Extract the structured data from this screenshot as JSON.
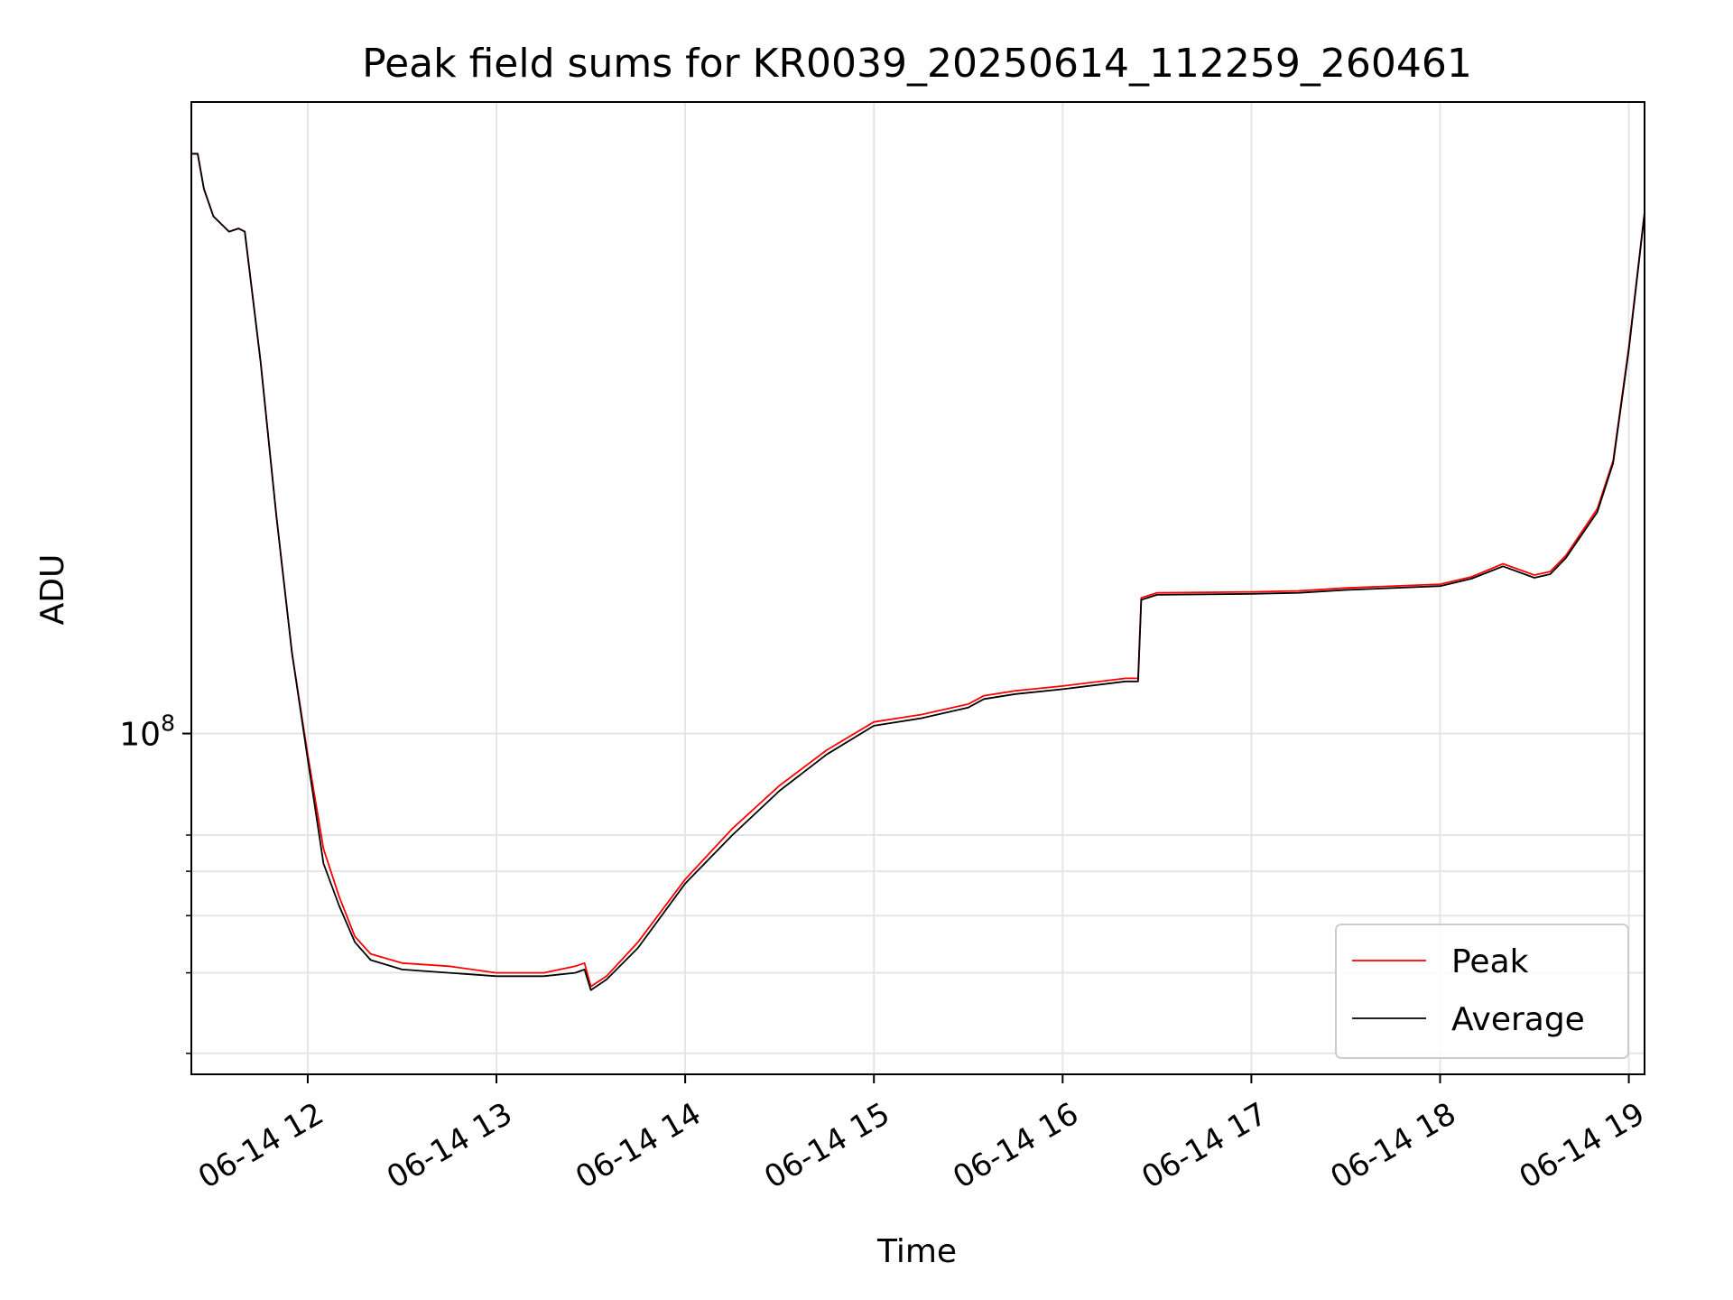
{
  "chart_data": {
    "type": "line",
    "title": "Peak field sums for KR0039_20250614_112259_260461",
    "xlabel": "Time",
    "ylabel": "ADU",
    "x_type": "datetime",
    "xlim": [
      "2025-06-14 11:23",
      "2025-06-14 19:05"
    ],
    "ylim": [
      18000000,
      2400000000
    ],
    "y_scale": "log",
    "y_major_ticks": [
      {
        "value": 100000000,
        "label": "10^8"
      }
    ],
    "y_minor_ticks": [
      20000000,
      30000000,
      40000000,
      50000000,
      60000000
    ],
    "x_ticks": [
      {
        "value": "2025-06-14 12:00",
        "label": "06-14 12"
      },
      {
        "value": "2025-06-14 13:00",
        "label": "06-14 13"
      },
      {
        "value": "2025-06-14 14:00",
        "label": "06-14 14"
      },
      {
        "value": "2025-06-14 15:00",
        "label": "06-14 15"
      },
      {
        "value": "2025-06-14 16:00",
        "label": "06-14 16"
      },
      {
        "value": "2025-06-14 17:00",
        "label": "06-14 17"
      },
      {
        "value": "2025-06-14 18:00",
        "label": "06-14 18"
      },
      {
        "value": "2025-06-14 19:00",
        "label": "06-14 19"
      }
    ],
    "grid": true,
    "legend_position": "lower-right",
    "series": [
      {
        "name": "Peak",
        "color": "#ff0000",
        "x": [
          "2025-06-14 11:23",
          "2025-06-14 11:25",
          "2025-06-14 11:27",
          "2025-06-14 11:30",
          "2025-06-14 11:35",
          "2025-06-14 11:38",
          "2025-06-14 11:40",
          "2025-06-14 11:45",
          "2025-06-14 11:50",
          "2025-06-14 11:55",
          "2025-06-14 12:00",
          "2025-06-14 12:05",
          "2025-06-14 12:10",
          "2025-06-14 12:15",
          "2025-06-14 12:20",
          "2025-06-14 12:30",
          "2025-06-14 12:45",
          "2025-06-14 13:00",
          "2025-06-14 13:15",
          "2025-06-14 13:25",
          "2025-06-14 13:28",
          "2025-06-14 13:30",
          "2025-06-14 13:35",
          "2025-06-14 13:45",
          "2025-06-14 14:00",
          "2025-06-14 14:15",
          "2025-06-14 14:30",
          "2025-06-14 14:45",
          "2025-06-14 15:00",
          "2025-06-14 15:15",
          "2025-06-14 15:30",
          "2025-06-14 15:35",
          "2025-06-14 15:45",
          "2025-06-14 16:00",
          "2025-06-14 16:20",
          "2025-06-14 16:24",
          "2025-06-14 16:25",
          "2025-06-14 16:30",
          "2025-06-14 17:00",
          "2025-06-14 17:15",
          "2025-06-14 17:30",
          "2025-06-14 18:00",
          "2025-06-14 18:10",
          "2025-06-14 18:20",
          "2025-06-14 18:30",
          "2025-06-14 18:35",
          "2025-06-14 18:40",
          "2025-06-14 18:50",
          "2025-06-14 18:55",
          "2025-06-14 19:00",
          "2025-06-14 19:05"
        ],
        "values": [
          1850000000,
          1850000000,
          1550000000,
          1350000000,
          1250000000,
          1270000000,
          1250000000,
          650000000,
          300000000,
          150000000,
          90000000,
          56000000,
          44000000,
          36000000,
          33000000,
          31500000,
          31000000,
          30000000,
          30000000,
          31000000,
          31500000,
          28000000,
          29500000,
          35000000,
          48000000,
          62000000,
          77000000,
          92000000,
          106000000,
          110000000,
          116000000,
          121000000,
          124000000,
          127000000,
          132000000,
          132000000,
          198000000,
          203000000,
          204000000,
          205000000,
          208000000,
          212000000,
          220000000,
          235000000,
          222000000,
          226000000,
          245000000,
          310000000,
          395000000,
          700000000,
          1380000000
        ]
      },
      {
        "name": "Average",
        "color": "#000000",
        "x": [
          "2025-06-14 11:23",
          "2025-06-14 11:25",
          "2025-06-14 11:27",
          "2025-06-14 11:30",
          "2025-06-14 11:35",
          "2025-06-14 11:38",
          "2025-06-14 11:40",
          "2025-06-14 11:45",
          "2025-06-14 11:50",
          "2025-06-14 11:55",
          "2025-06-14 12:00",
          "2025-06-14 12:05",
          "2025-06-14 12:10",
          "2025-06-14 12:15",
          "2025-06-14 12:20",
          "2025-06-14 12:30",
          "2025-06-14 12:45",
          "2025-06-14 13:00",
          "2025-06-14 13:15",
          "2025-06-14 13:25",
          "2025-06-14 13:28",
          "2025-06-14 13:30",
          "2025-06-14 13:35",
          "2025-06-14 13:45",
          "2025-06-14 14:00",
          "2025-06-14 14:15",
          "2025-06-14 14:30",
          "2025-06-14 14:45",
          "2025-06-14 15:00",
          "2025-06-14 15:15",
          "2025-06-14 15:30",
          "2025-06-14 15:35",
          "2025-06-14 15:45",
          "2025-06-14 16:00",
          "2025-06-14 16:20",
          "2025-06-14 16:24",
          "2025-06-14 16:25",
          "2025-06-14 16:30",
          "2025-06-14 17:00",
          "2025-06-14 17:15",
          "2025-06-14 17:30",
          "2025-06-14 18:00",
          "2025-06-14 18:10",
          "2025-06-14 18:20",
          "2025-06-14 18:30",
          "2025-06-14 18:35",
          "2025-06-14 18:40",
          "2025-06-14 18:50",
          "2025-06-14 18:55",
          "2025-06-14 19:00",
          "2025-06-14 19:05"
        ],
        "values": [
          1850000000,
          1850000000,
          1550000000,
          1350000000,
          1250000000,
          1270000000,
          1250000000,
          650000000,
          300000000,
          150000000,
          88000000,
          52000000,
          42000000,
          35000000,
          32000000,
          30500000,
          30000000,
          29500000,
          29500000,
          30000000,
          30500000,
          27500000,
          29000000,
          34000000,
          47000000,
          60000000,
          75000000,
          90000000,
          104000000,
          108000000,
          114000000,
          119000000,
          122000000,
          125000000,
          130000000,
          130000000,
          196000000,
          201000000,
          202000000,
          203000000,
          206000000,
          210000000,
          218000000,
          232000000,
          219000000,
          223000000,
          242000000,
          305000000,
          390000000,
          690000000,
          1370000000
        ]
      }
    ]
  }
}
